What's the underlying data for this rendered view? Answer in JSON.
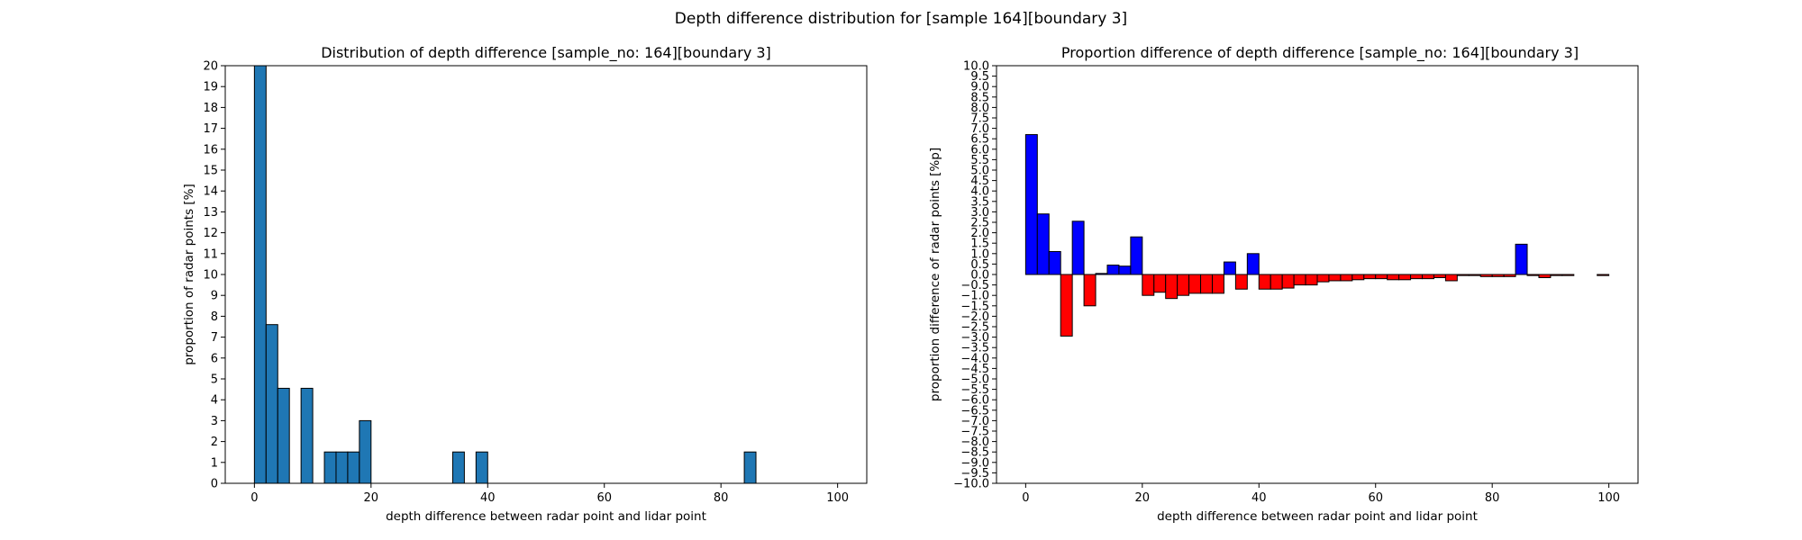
{
  "figure": {
    "suptitle": "Depth difference distribution for [sample 164][boundary 3]"
  },
  "chart_data": [
    {
      "type": "bar",
      "title": "Distribution of depth difference [sample_no: 164][boundary 3]",
      "xlabel": "depth difference between radar point and lidar point",
      "ylabel": "proportion of radar points [%]",
      "xlim": [
        -5,
        105
      ],
      "ylim": [
        0,
        20
      ],
      "xticks": [
        0,
        20,
        40,
        60,
        80,
        100
      ],
      "yticks": [
        0,
        1,
        2,
        3,
        4,
        5,
        6,
        7,
        8,
        9,
        10,
        11,
        12,
        13,
        14,
        15,
        16,
        17,
        18,
        19,
        20
      ],
      "bin_width": 2,
      "bar_color": "#1f77b4",
      "edge_color": "#000000",
      "bars": [
        {
          "x": 0,
          "value": 20.0
        },
        {
          "x": 2,
          "value": 7.6
        },
        {
          "x": 4,
          "value": 4.55
        },
        {
          "x": 8,
          "value": 4.55
        },
        {
          "x": 12,
          "value": 1.5
        },
        {
          "x": 14,
          "value": 1.5
        },
        {
          "x": 16,
          "value": 1.5
        },
        {
          "x": 18,
          "value": 3.0
        },
        {
          "x": 34,
          "value": 1.5
        },
        {
          "x": 38,
          "value": 1.5
        },
        {
          "x": 84,
          "value": 1.5
        }
      ],
      "grid": false
    },
    {
      "type": "bar",
      "title": "Proportion difference of depth difference [sample_no: 164][boundary 3]",
      "xlabel": "depth difference between radar point and lidar point",
      "ylabel": "proportion difference of radar points [%p]",
      "xlim": [
        -5,
        105
      ],
      "ylim": [
        -10,
        10
      ],
      "xticks": [
        0,
        20,
        40,
        60,
        80,
        100
      ],
      "ytick_step": 0.5,
      "bin_width": 2,
      "positive_color": "#0000ff",
      "negative_color": "#ff0000",
      "edge_color": "#000000",
      "x": [
        0,
        2,
        4,
        6,
        8,
        10,
        12,
        14,
        16,
        18,
        20,
        22,
        24,
        26,
        28,
        30,
        32,
        34,
        36,
        38,
        40,
        42,
        44,
        46,
        48,
        50,
        52,
        54,
        56,
        58,
        60,
        62,
        64,
        66,
        68,
        70,
        72,
        74,
        76,
        78,
        80,
        82,
        84,
        86,
        88,
        90,
        92,
        94,
        96,
        98
      ],
      "values": [
        6.7,
        2.9,
        1.1,
        -2.95,
        2.55,
        -1.5,
        0.05,
        0.45,
        0.4,
        1.8,
        -1.0,
        -0.85,
        -1.15,
        -1.0,
        -0.9,
        -0.9,
        -0.9,
        0.6,
        -0.7,
        1.0,
        -0.7,
        -0.7,
        -0.65,
        -0.5,
        -0.5,
        -0.35,
        -0.3,
        -0.3,
        -0.25,
        -0.2,
        -0.2,
        -0.25,
        -0.25,
        -0.2,
        -0.2,
        -0.15,
        -0.3,
        -0.05,
        -0.05,
        -0.1,
        -0.1,
        -0.1,
        1.45,
        -0.05,
        -0.15,
        -0.05,
        -0.05,
        0.0,
        0.0,
        -0.05
      ],
      "grid": false
    }
  ]
}
